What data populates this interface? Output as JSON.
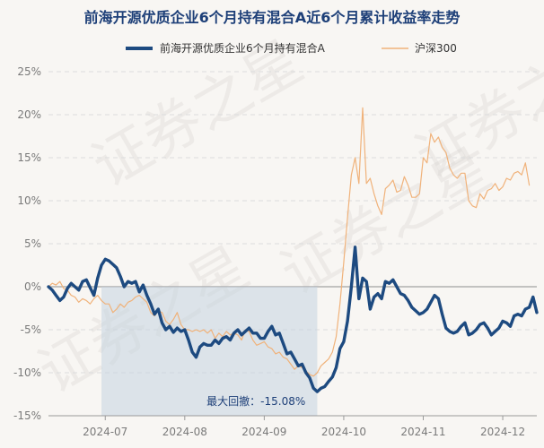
{
  "chart_data": {
    "type": "line",
    "title": "前海开源优质企业6个月持有混合A近6个月累计收益率走势",
    "legend": {
      "placement": "top-center"
    },
    "series": [
      {
        "name": "前海开源优质企业6个月持有混合A",
        "color": "#1d4a80",
        "points": [
          [
            0,
            0
          ],
          [
            1,
            -0.4
          ],
          [
            2,
            -1
          ],
          [
            3,
            -1.6
          ],
          [
            4,
            -1.2
          ],
          [
            5,
            -0.2
          ],
          [
            6,
            0.4
          ],
          [
            7,
            0
          ],
          [
            8,
            -0.4
          ],
          [
            9,
            0.6
          ],
          [
            10,
            0.8
          ],
          [
            11,
            -0.1
          ],
          [
            12,
            -1
          ],
          [
            13,
            1
          ],
          [
            14,
            2.5
          ],
          [
            15,
            3.2
          ],
          [
            16,
            3.0
          ],
          [
            17,
            2.6
          ],
          [
            18,
            2.2
          ],
          [
            19,
            1.2
          ],
          [
            20,
            0
          ],
          [
            21,
            0.6
          ],
          [
            22,
            0.4
          ],
          [
            23,
            0.6
          ],
          [
            24,
            -0.6
          ],
          [
            25,
            0.2
          ],
          [
            26,
            -1
          ],
          [
            27,
            -2
          ],
          [
            28,
            -3.2
          ],
          [
            29,
            -2.6
          ],
          [
            30,
            -4.2
          ],
          [
            31,
            -5
          ],
          [
            32,
            -4.6
          ],
          [
            33,
            -5.3
          ],
          [
            34,
            -4.8
          ],
          [
            35,
            -5.2
          ],
          [
            36,
            -5
          ],
          [
            37,
            -6.2
          ],
          [
            38,
            -7.6
          ],
          [
            39,
            -8.2
          ],
          [
            40,
            -7
          ],
          [
            41,
            -6.6
          ],
          [
            42,
            -6.8
          ],
          [
            43,
            -6.8
          ],
          [
            44,
            -6.2
          ],
          [
            45,
            -6.6
          ],
          [
            46,
            -6
          ],
          [
            47,
            -5.8
          ],
          [
            48,
            -6.2
          ],
          [
            49,
            -5.4
          ],
          [
            50,
            -5
          ],
          [
            51,
            -5.6
          ],
          [
            52,
            -5.2
          ],
          [
            53,
            -4.8
          ],
          [
            54,
            -5.4
          ],
          [
            55,
            -5.4
          ],
          [
            56,
            -6
          ],
          [
            57,
            -6
          ],
          [
            58,
            -5.2
          ],
          [
            59,
            -4.6
          ],
          [
            60,
            -5.6
          ],
          [
            61,
            -5.4
          ],
          [
            62,
            -6.6
          ],
          [
            63,
            -7.8
          ],
          [
            64,
            -7.6
          ],
          [
            65,
            -8.4
          ],
          [
            66,
            -9.2
          ],
          [
            67,
            -9
          ],
          [
            68,
            -10
          ],
          [
            69,
            -10.6
          ],
          [
            70,
            -11.8
          ],
          [
            71,
            -12.2
          ],
          [
            72,
            -11.8
          ],
          [
            73,
            -11.6
          ],
          [
            74,
            -11
          ],
          [
            75,
            -10.5
          ],
          [
            76,
            -9.4
          ],
          [
            77,
            -7.2
          ],
          [
            78,
            -6.4
          ],
          [
            79,
            -4
          ],
          [
            80,
            0
          ],
          [
            81,
            4.6
          ],
          [
            82,
            -1.4
          ],
          [
            83,
            1
          ],
          [
            84,
            0.6
          ],
          [
            85,
            -2.6
          ],
          [
            86,
            -1.2
          ],
          [
            87,
            -0.8
          ],
          [
            88,
            -1.4
          ],
          [
            89,
            0.6
          ],
          [
            90,
            0.4
          ],
          [
            91,
            0.8
          ],
          [
            92,
            0
          ],
          [
            93,
            -0.8
          ],
          [
            94,
            -1
          ],
          [
            95,
            -1.6
          ],
          [
            96,
            -2.4
          ],
          [
            97,
            -2.8
          ],
          [
            98,
            -3.2
          ],
          [
            99,
            -3
          ],
          [
            100,
            -2.6
          ],
          [
            101,
            -1.8
          ],
          [
            102,
            -1
          ],
          [
            103,
            -1.4
          ],
          [
            104,
            -3.2
          ],
          [
            105,
            -4.8
          ],
          [
            106,
            -5.2
          ],
          [
            107,
            -5.4
          ],
          [
            108,
            -5.2
          ],
          [
            109,
            -4.6
          ],
          [
            110,
            -4.2
          ],
          [
            111,
            -5.6
          ],
          [
            112,
            -5.4
          ],
          [
            113,
            -5
          ],
          [
            114,
            -4.4
          ],
          [
            115,
            -4.2
          ],
          [
            116,
            -4.8
          ],
          [
            117,
            -5.6
          ],
          [
            118,
            -5.2
          ],
          [
            119,
            -4.8
          ],
          [
            120,
            -4
          ],
          [
            121,
            -4.2
          ],
          [
            122,
            -4.6
          ],
          [
            123,
            -3.4
          ],
          [
            124,
            -3.2
          ],
          [
            125,
            -3.4
          ],
          [
            126,
            -2.6
          ],
          [
            127,
            -2.4
          ],
          [
            128,
            -1.2
          ],
          [
            129,
            -3
          ]
        ]
      },
      {
        "name": "沪深300",
        "color": "#f0b27a",
        "points": [
          [
            0,
            0
          ],
          [
            1,
            0.4
          ],
          [
            2,
            0.2
          ],
          [
            3,
            0.6
          ],
          [
            4,
            -0.2
          ],
          [
            5,
            -0.4
          ],
          [
            6,
            -1
          ],
          [
            7,
            -1.2
          ],
          [
            8,
            -1.8
          ],
          [
            9,
            -1.4
          ],
          [
            10,
            -1.6
          ],
          [
            11,
            -2
          ],
          [
            12,
            -1.4
          ],
          [
            13,
            -1
          ],
          [
            14,
            -1.6
          ],
          [
            15,
            -2
          ],
          [
            16,
            -2
          ],
          [
            17,
            -3
          ],
          [
            18,
            -2.6
          ],
          [
            19,
            -2
          ],
          [
            20,
            -2.4
          ],
          [
            21,
            -1.8
          ],
          [
            22,
            -1.6
          ],
          [
            23,
            -1.2
          ],
          [
            24,
            -1
          ],
          [
            25,
            -1.4
          ],
          [
            26,
            -1.8
          ],
          [
            27,
            -3
          ],
          [
            28,
            -3.4
          ],
          [
            29,
            -2.8
          ],
          [
            30,
            -3
          ],
          [
            31,
            -4
          ],
          [
            32,
            -4.4
          ],
          [
            33,
            -3.8
          ],
          [
            34,
            -3
          ],
          [
            35,
            -4.4
          ],
          [
            36,
            -5
          ],
          [
            37,
            -5
          ],
          [
            38,
            -5.2
          ],
          [
            39,
            -5
          ],
          [
            40,
            -5.2
          ],
          [
            41,
            -5
          ],
          [
            42,
            -5.4
          ],
          [
            43,
            -5
          ],
          [
            44,
            -6
          ],
          [
            45,
            -5.4
          ],
          [
            46,
            -5.8
          ],
          [
            47,
            -5.2
          ],
          [
            48,
            -5.6
          ],
          [
            49,
            -5.4
          ],
          [
            50,
            -5.6
          ],
          [
            51,
            -6.2
          ],
          [
            52,
            -5
          ],
          [
            53,
            -5.2
          ],
          [
            54,
            -6.2
          ],
          [
            55,
            -6.8
          ],
          [
            56,
            -6.6
          ],
          [
            57,
            -6.4
          ],
          [
            58,
            -7
          ],
          [
            59,
            -7.2
          ],
          [
            60,
            -7.8
          ],
          [
            61,
            -7.6
          ],
          [
            62,
            -8.2
          ],
          [
            63,
            -8.4
          ],
          [
            64,
            -9
          ],
          [
            65,
            -9.6
          ],
          [
            66,
            -9.2
          ],
          [
            67,
            -9.4
          ],
          [
            68,
            -9.8
          ],
          [
            69,
            -10.2
          ],
          [
            70,
            -10.4
          ],
          [
            71,
            -10
          ],
          [
            72,
            -9.2
          ],
          [
            73,
            -8.8
          ],
          [
            74,
            -8.4
          ],
          [
            75,
            -7.6
          ],
          [
            76,
            -5.8
          ],
          [
            77,
            -2
          ],
          [
            78,
            2.8
          ],
          [
            79,
            8
          ],
          [
            80,
            13
          ],
          [
            81,
            15
          ],
          [
            82,
            12
          ],
          [
            83,
            20.8
          ],
          [
            84,
            12
          ],
          [
            85,
            12.6
          ],
          [
            86,
            10.8
          ],
          [
            87,
            9.4
          ],
          [
            88,
            8.4
          ],
          [
            89,
            11.4
          ],
          [
            90,
            11.8
          ],
          [
            91,
            12.4
          ],
          [
            92,
            11
          ],
          [
            93,
            11.2
          ],
          [
            94,
            12.8
          ],
          [
            95,
            11.8
          ],
          [
            96,
            10.4
          ],
          [
            97,
            10.4
          ],
          [
            98,
            10.8
          ],
          [
            99,
            15
          ],
          [
            100,
            14.4
          ],
          [
            101,
            17.8
          ],
          [
            102,
            16.8
          ],
          [
            103,
            17.4
          ],
          [
            104,
            16.2
          ],
          [
            105,
            15.6
          ],
          [
            106,
            13.8
          ],
          [
            107,
            13
          ],
          [
            108,
            12.6
          ],
          [
            109,
            13.2
          ],
          [
            110,
            13.2
          ],
          [
            111,
            10
          ],
          [
            112,
            9.4
          ],
          [
            113,
            9.2
          ],
          [
            114,
            10.8
          ],
          [
            115,
            10.2
          ],
          [
            116,
            11.2
          ],
          [
            117,
            11.4
          ],
          [
            118,
            12
          ],
          [
            119,
            11.2
          ],
          [
            120,
            11.6
          ],
          [
            121,
            12.6
          ],
          [
            122,
            12.4
          ],
          [
            123,
            13.2
          ],
          [
            124,
            13.4
          ],
          [
            125,
            13
          ],
          [
            126,
            14.4
          ],
          [
            127,
            11.8
          ]
        ]
      }
    ],
    "ylim": [
      -15,
      25
    ],
    "y_ticks": [
      "25%",
      "20%",
      "15%",
      "10%",
      "5%",
      "0%",
      "-5%",
      "-10%",
      "-15%"
    ],
    "x_ticks": [
      {
        "label": "2024-07",
        "x": 15
      },
      {
        "label": "2024-08",
        "x": 36
      },
      {
        "label": "2024-09",
        "x": 57
      },
      {
        "label": "2024-10",
        "x": 78
      },
      {
        "label": "2024-11",
        "x": 99
      },
      {
        "label": "2024-12",
        "x": 120
      }
    ],
    "xlim": [
      0,
      129
    ],
    "drawdown": {
      "label": "最大回撤：-15.08%",
      "x_start": 14,
      "x_end": 71
    },
    "grid": true,
    "watermark": "证券之星"
  }
}
